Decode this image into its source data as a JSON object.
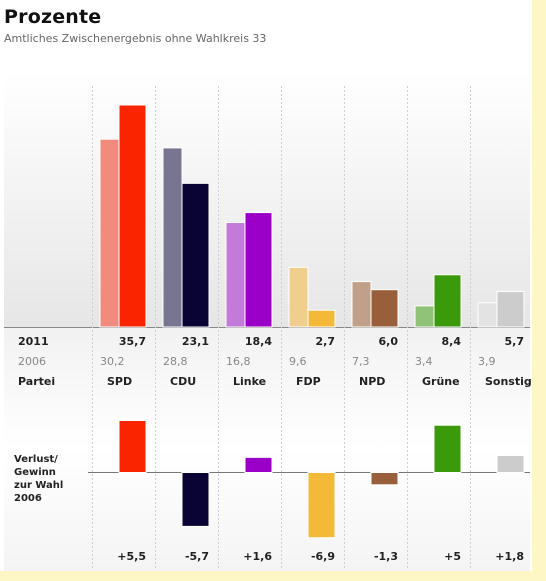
{
  "header": {
    "title": "Prozente",
    "subtitle": "Amtliches Zwischenergebnis ohne Wahlkreis 33"
  },
  "row_labels": {
    "current_year": "2011",
    "previous_year": "2006",
    "party": "Partei",
    "change_lines": [
      "Verlust/",
      "Gewinn",
      "zur Wahl",
      "2006"
    ]
  },
  "chart_data": [
    {
      "type": "bar",
      "categories": [
        "SPD",
        "CDU",
        "Linke",
        "FDP",
        "NPD",
        "Grüne",
        "Sonstige"
      ],
      "series": [
        {
          "name": "2006",
          "values": [
            30.2,
            28.8,
            16.8,
            9.6,
            7.3,
            3.4,
            3.9
          ],
          "labels": [
            "30,2",
            "28,8",
            "16,8",
            "9,6",
            "7,3",
            "3,4",
            "3,9"
          ]
        },
        {
          "name": "2011",
          "values": [
            35.7,
            23.1,
            18.4,
            2.7,
            6.0,
            8.4,
            5.7
          ],
          "labels": [
            "35,7",
            "23,1",
            "18,4",
            "2,7",
            "6,0",
            "8,4",
            "5,7"
          ]
        }
      ],
      "colors_2011": [
        "#fb2400",
        "#0a0434",
        "#9a00c8",
        "#f5b93a",
        "#985f3a",
        "#3a9a0a",
        "#cccccc"
      ],
      "colors_2006": [
        "#f38a7e",
        "#787590",
        "#c47ad8",
        "#f0cf8e",
        "#c0a088",
        "#90c278",
        "#e3e3e3"
      ],
      "ylim": [
        0,
        38
      ]
    },
    {
      "type": "bar",
      "categories": [
        "SPD",
        "CDU",
        "Linke",
        "FDP",
        "NPD",
        "Grüne",
        "Sonstige"
      ],
      "values": [
        5.5,
        -5.7,
        1.6,
        -6.9,
        -1.3,
        5.0,
        1.8
      ],
      "labels": [
        "+5,5",
        "-5,7",
        "+1,6",
        "-6,9",
        "-1,3",
        "+5",
        "+1,8"
      ],
      "ylim": [
        -7,
        6
      ]
    }
  ]
}
